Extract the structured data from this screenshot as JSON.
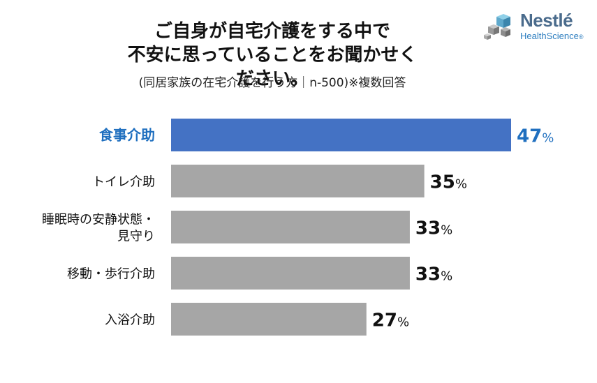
{
  "header": {
    "title_line1": "ご自身が自宅介護をする中で",
    "title_line2": "不安に思っていることをお聞かせください。",
    "subtitle": "(同居家族の在宅介護を行う方｜n-500)※複数回答"
  },
  "logo": {
    "brand": "Nestlé",
    "sub": "HealthScience",
    "mark": "®"
  },
  "chart_data": {
    "type": "bar",
    "orientation": "horizontal",
    "categories": [
      "食事介助",
      "トイレ介助",
      "睡眠時の安静状態・見守り",
      "移動・歩行介助",
      "入浴介助"
    ],
    "category_lines": [
      [
        "食事介助"
      ],
      [
        "トイレ介助"
      ],
      [
        "睡眠時の安静状態・",
        "見守り"
      ],
      [
        "移動・歩行介助"
      ],
      [
        "入浴介助"
      ]
    ],
    "values": [
      47,
      35,
      33,
      33,
      27
    ],
    "value_suffix": "%",
    "highlight_index": 0,
    "xlim": [
      0,
      100
    ],
    "grid": false,
    "colors": {
      "highlight": "#4472c4",
      "normal": "#a6a6a6",
      "highlight_text": "#1f6fbf",
      "text": "#111111"
    }
  }
}
